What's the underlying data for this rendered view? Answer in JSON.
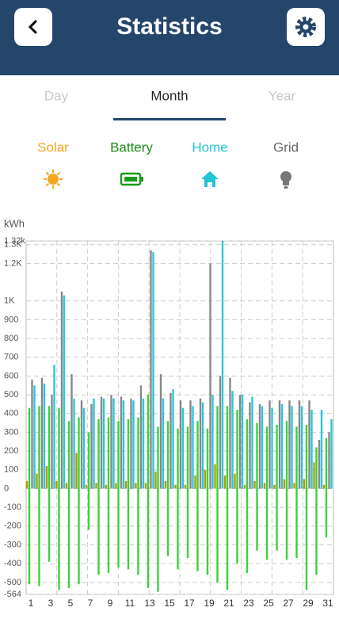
{
  "header": {
    "title": "Statistics"
  },
  "tabs": [
    "Day",
    "Month",
    "Year"
  ],
  "chart_data": {
    "type": "bar",
    "y_label": "kWh",
    "categories": [
      "1",
      null,
      "3",
      null,
      "5",
      null,
      "7",
      null,
      "9",
      null,
      "11",
      null,
      "13",
      null,
      "15",
      null,
      "17",
      null,
      "19",
      null,
      "21",
      null,
      "23",
      null,
      "25",
      null,
      "27",
      null,
      "29",
      null,
      "31"
    ],
    "series": [
      {
        "name": "Solar",
        "color": "#b89a00",
        "values": [
          40,
          80,
          120,
          40,
          30,
          190,
          20,
          30,
          20,
          30,
          40,
          30,
          30,
          90,
          40,
          20,
          20,
          70,
          100,
          130,
          70,
          80,
          20,
          40,
          30,
          20,
          50,
          30,
          50,
          140,
          20
        ]
      },
      {
        "name": "Battery",
        "color": "#3cd13c",
        "values": [
          430,
          440,
          440,
          430,
          360,
          380,
          300,
          370,
          380,
          360,
          370,
          380,
          500,
          330,
          360,
          320,
          330,
          360,
          320,
          440,
          440,
          420,
          370,
          350,
          330,
          340,
          360,
          330,
          340,
          220,
          270
        ],
        "negative_values": [
          -510,
          -520,
          -390,
          -540,
          -530,
          -510,
          -220,
          -460,
          -450,
          -420,
          -430,
          -460,
          -530,
          -550,
          -360,
          -430,
          -370,
          -440,
          -460,
          -500,
          -540,
          -400,
          -450,
          -330,
          -380,
          -330,
          -380,
          -370,
          -540,
          -460,
          -260
        ]
      },
      {
        "name": "Home",
        "color": "#2cc6dc",
        "values": [
          550,
          560,
          660,
          1030,
          480,
          430,
          480,
          480,
          480,
          470,
          470,
          480,
          1260,
          480,
          530,
          430,
          440,
          460,
          500,
          1320,
          520,
          500,
          490,
          440,
          430,
          450,
          440,
          440,
          420,
          420,
          370
        ]
      },
      {
        "name": "Grid",
        "color": "#888888",
        "values": [
          580,
          590,
          500,
          1050,
          610,
          470,
          450,
          490,
          500,
          490,
          480,
          550,
          1270,
          610,
          510,
          470,
          470,
          480,
          1200,
          600,
          590,
          500,
          460,
          450,
          470,
          470,
          470,
          470,
          470,
          260,
          300
        ]
      }
    ],
    "ylim": [
      -564,
      1320
    ],
    "yticks": [
      {
        "value": 1320,
        "label": "1.32k"
      },
      {
        "value": 1300,
        "label": "1.3K"
      },
      {
        "value": 1200,
        "label": "1.2K"
      },
      {
        "value": 1000,
        "label": "1K"
      },
      900,
      800,
      700,
      600,
      500,
      400,
      300,
      200,
      100,
      0,
      -100,
      -200,
      -300,
      -400,
      -500,
      -564
    ],
    "grid": true
  }
}
